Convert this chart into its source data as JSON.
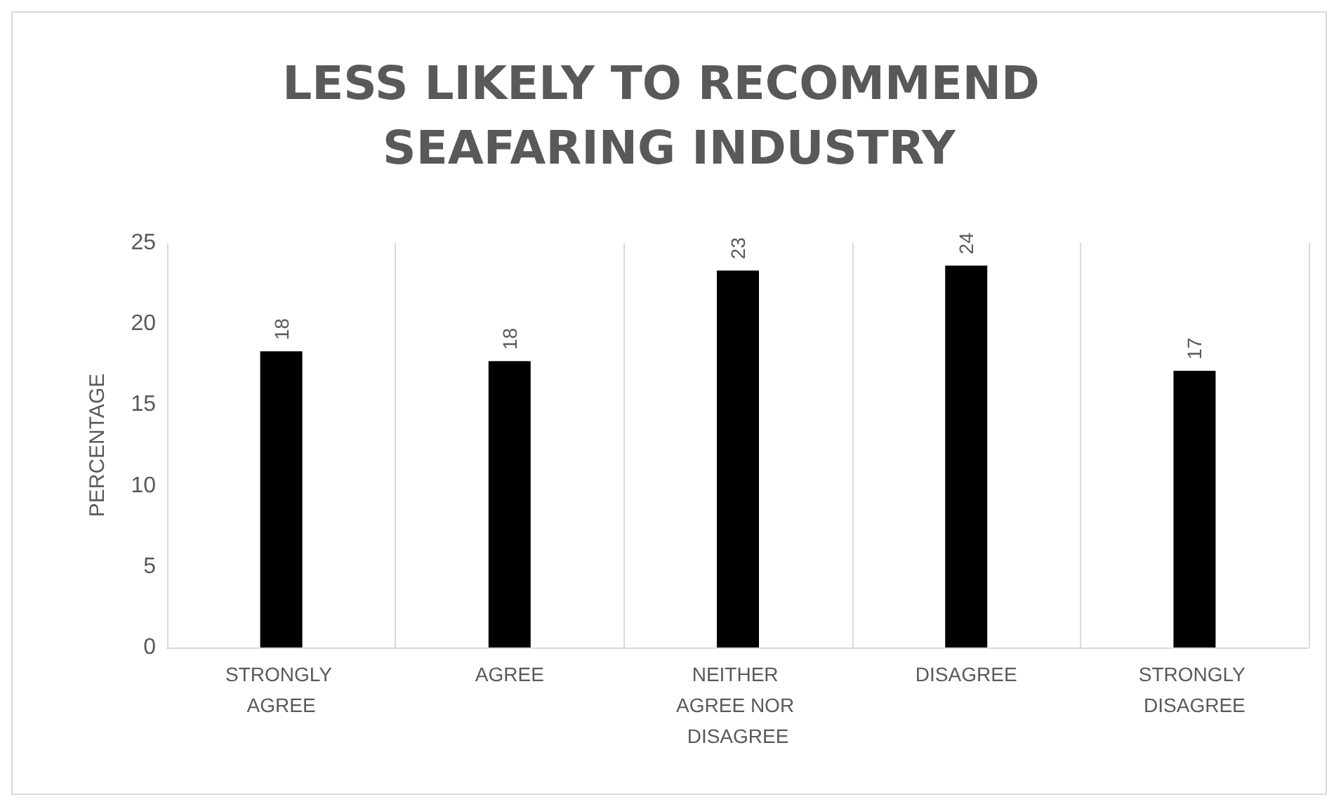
{
  "chart_data": {
    "type": "bar",
    "title": "LESS LIKELY TO RECOMMEND SEAFARING INDUSTRY",
    "ylabel": "PERCENTAGE",
    "categories": [
      "STRONGLY AGREE",
      "AGREE",
      "NEITHER AGREE NOR DISAGREE",
      "DISAGREE",
      "STRONGLY DISAGREE"
    ],
    "values": [
      18.3,
      17.7,
      23.3,
      23.6,
      17.1
    ],
    "value_labels": [
      "18",
      "18",
      "23",
      "24",
      "17"
    ],
    "color": "#000000",
    "ylim": [
      0,
      25
    ],
    "yticks": [
      0,
      5,
      10,
      15,
      20,
      25
    ],
    "grid": "x"
  }
}
